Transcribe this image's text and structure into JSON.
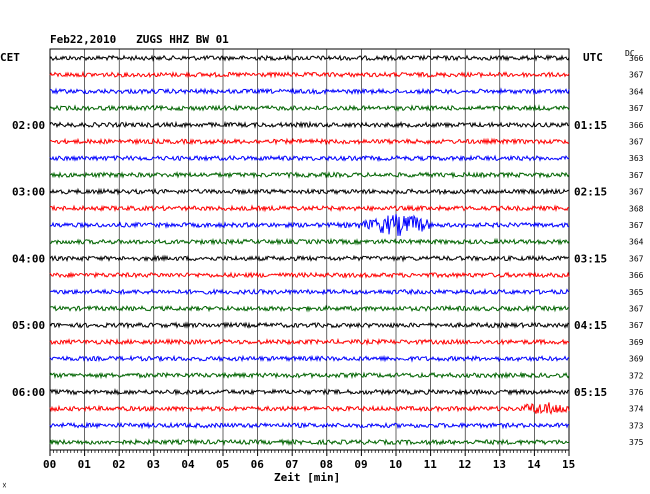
{
  "title": "Feb22,2010   ZUGS HHZ BW 01",
  "left_axis_label": "CET",
  "right_axis_label": "UTC",
  "dc_label": "DC",
  "x_axis_label": "Zeit [min]",
  "corner_mark": "☓",
  "colors": {
    "trace_cycle": [
      "#000000",
      "#ff0000",
      "#0000ff",
      "#006400"
    ],
    "grid": "#000000",
    "background": "#ffffff"
  },
  "chart_data": {
    "type": "line",
    "title": "Feb22,2010   ZUGS HHZ BW 01",
    "xlabel": "Zeit [min]",
    "xlim": [
      0,
      15
    ],
    "x_ticks": [
      "00",
      "01",
      "02",
      "03",
      "04",
      "05",
      "06",
      "07",
      "08",
      "09",
      "10",
      "11",
      "12",
      "13",
      "14",
      "15"
    ],
    "grid": true,
    "row_count": 24,
    "cet_labels": [
      {
        "row": 4,
        "text": "02:00"
      },
      {
        "row": 8,
        "text": "03:00"
      },
      {
        "row": 12,
        "text": "04:00"
      },
      {
        "row": 16,
        "text": "05:00"
      },
      {
        "row": 20,
        "text": "06:00"
      }
    ],
    "utc_labels": [
      {
        "row": 4,
        "text": "01:15"
      },
      {
        "row": 8,
        "text": "02:15"
      },
      {
        "row": 12,
        "text": "03:15"
      },
      {
        "row": 16,
        "text": "04:15"
      },
      {
        "row": 20,
        "text": "05:15"
      }
    ],
    "dc_values": [
      366,
      367,
      364,
      367,
      366,
      367,
      363,
      367,
      367,
      368,
      367,
      364,
      367,
      366,
      365,
      367,
      367,
      369,
      369,
      372,
      376,
      374,
      373,
      375
    ],
    "events": [
      {
        "row": 10,
        "start_min": 8.5,
        "end_min": 11.0,
        "peak_min": 10.1,
        "amplitude": "large"
      },
      {
        "row": 21,
        "start_min": 13.7,
        "end_min": 15.0,
        "peak_min": 14.3,
        "amplitude": "medium"
      }
    ]
  }
}
